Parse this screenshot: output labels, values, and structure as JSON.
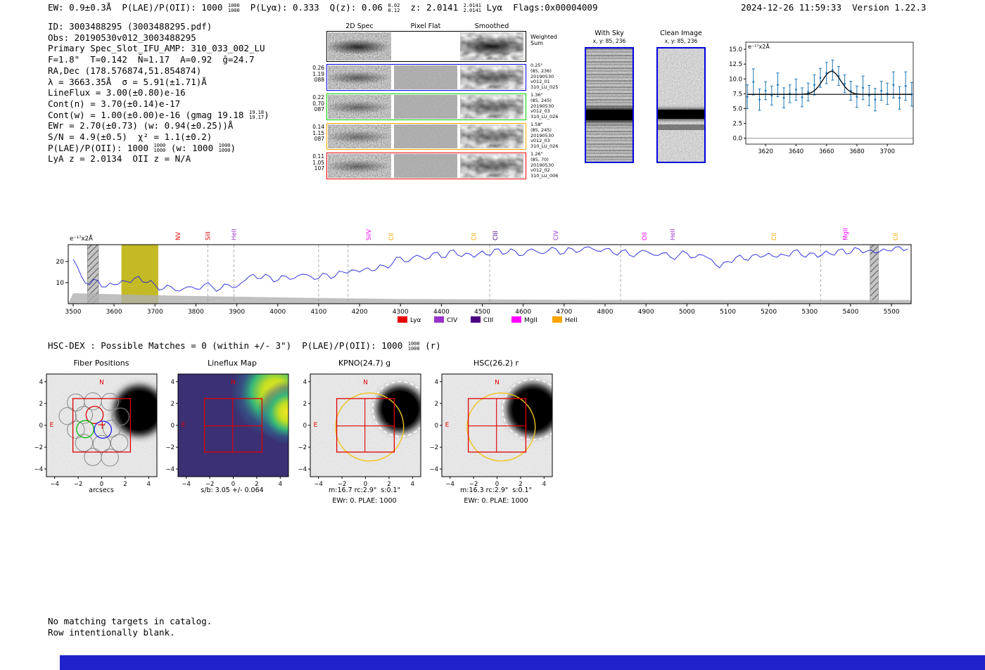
{
  "meta": {
    "timestamp": "2024-12-26 11:59:33",
    "version": "Version 1.22.3"
  },
  "header": {
    "segments": [
      {
        "t": "EW: 0.9±0.3Å  P(LAE)/P(OII): 1000 "
      },
      {
        "frac": [
          "1000",
          "1000"
        ]
      },
      {
        "t": "  P(Lyα): 0.333  Q(z): 0.06 "
      },
      {
        "frac": [
          "0.02",
          "0.12"
        ]
      },
      {
        "t": "  z: 2.0141 "
      },
      {
        "frac": [
          "2.0141",
          "2.0141"
        ]
      },
      {
        "t": " Lyα  Flags:0x00004009"
      }
    ]
  },
  "info_lines": [
    [
      {
        "t": "ID: 3003488295 (3003488295.pdf)"
      }
    ],
    [
      {
        "t": "Obs: 20190530v012_3003488295"
      }
    ],
    [
      {
        "t": "Primary Spec_Slot_IFU_AMP: 310_033_002_LU"
      }
    ],
    [
      {
        "t": "F=1.8\"  T=0.142  N̄=1.17  A=0.92  ḡ=24.7"
      }
    ],
    [
      {
        "t": "RA,Dec (178.576874,51.854874)"
      }
    ],
    [
      {
        "t": "λ = 3663.35Å  σ = 5.91(±1.71)Å"
      }
    ],
    [
      {
        "t": "LineFlux = 3.00(±0.80)e-16"
      }
    ],
    [
      {
        "t": "Cont(n) = 3.70(±0.14)e-17"
      }
    ],
    [
      {
        "t": "Cont(w) = 1.00(±0.00)e-16 (gmag 19.18 "
      },
      {
        "frac": [
          "19.18",
          "19.17"
        ]
      },
      {
        "t": ")"
      }
    ],
    [
      {
        "t": "EWr = 2.70(±0.73) (w: 0.94(±0.25))Å"
      }
    ],
    [
      {
        "t": "S/N = 4.9(±0.5)  χ² = 1.1(±0.2)"
      }
    ],
    [
      {
        "t": "P(LAE)/P(OII): 1000 "
      },
      {
        "frac": [
          "1000",
          "1000"
        ]
      },
      {
        "t": " (w: 1000 "
      },
      {
        "frac": [
          "1000",
          "1000"
        ]
      },
      {
        "t": ")"
      }
    ],
    [
      {
        "t": "LyA z = 2.0134  OII z = N/A"
      }
    ]
  ],
  "spec2d": {
    "col_titles": [
      "2D Spec",
      "Pixel Flat",
      "Smoothed"
    ],
    "weighted_label": [
      "Weighted",
      "Sum"
    ],
    "rows": [
      {
        "color": "#0000dd",
        "left": [
          "0.26",
          "1.19",
          "088"
        ],
        "right": [
          "0.25\"",
          "(85, 236)",
          "20190530",
          "v012_01",
          "310_LU_025"
        ]
      },
      {
        "color": "#00cc00",
        "left": [
          "0.22",
          "0.70",
          "087"
        ],
        "right": [
          "1.36\"",
          "(85, 245)",
          "20190530",
          "v012_03",
          "310_LU_026"
        ]
      },
      {
        "color": "#ffa500",
        "left": [
          "0.14",
          "1.15",
          "087"
        ],
        "right": [
          "1.58\"",
          "(85, 245)",
          "20190530",
          "v012_03",
          "310_LU_026"
        ]
      },
      {
        "color": "#ee0000",
        "left": [
          "0.11",
          "1.05",
          "107"
        ],
        "right": [
          "1.26\"",
          "(85, 70)",
          "20190530",
          "v012_02",
          "310_LU_006"
        ]
      }
    ]
  },
  "withsky": {
    "title": "With Sky",
    "coords": "x, y: 85, 236"
  },
  "clean": {
    "title": "Clean Image",
    "coords": "x, y: 85, 236"
  },
  "hsc_line": [
    {
      "t": "HSC-DEX : Possible Matches = 0 (within +/- 3\")  P(LAE)/P(OII): 1000 "
    },
    {
      "frac": [
        "1000",
        "1000"
      ]
    },
    {
      "t": " (r)"
    }
  ],
  "cutouts": {
    "ticks": [
      -4,
      -2,
      0,
      2,
      4
    ],
    "compass": {
      "n": "N",
      "e": "E"
    },
    "panels": [
      {
        "title": "Fiber Positions",
        "xlabel": "arcsecs",
        "type": "fiber"
      },
      {
        "title": "Lineflux Map",
        "xlabel": "s/b: 3.05 +/- 0.064",
        "type": "lineflux"
      },
      {
        "title": "KPNO(24.7) g",
        "xlabel": "m:16.7 rc:2.9\"  s:0.1\"",
        "caption": "EWr: 0. PLAE: 1000",
        "type": "image"
      },
      {
        "title": "HSC(26.2) r",
        "xlabel": "m:16.3 rc:2.9\"  s:0.1\"",
        "caption": "EWr: 0. PLAE: 1000",
        "type": "image"
      }
    ]
  },
  "footer": {
    "lines": [
      "No matching targets in catalog.",
      "Row intentionally blank."
    ]
  },
  "colors": {
    "spectrum_line": "#2222dd",
    "band_yellow": "#b8ae00",
    "box_blue": "#0000dd",
    "bottom_bar": "#2222cc",
    "crosshair_red": "#e00000",
    "aperture_yellow": "#f0c420",
    "point_blue": "#1f77b4"
  },
  "chart_data": [
    {
      "id": "spectrum",
      "type": "line",
      "ylabel": "e⁻¹⁷x2Å",
      "xlim": [
        3488,
        5548
      ],
      "ylim": [
        0,
        28
      ],
      "xticks": [
        3500,
        3600,
        3700,
        3800,
        3900,
        4000,
        4100,
        4200,
        4300,
        4400,
        4500,
        4600,
        4700,
        4800,
        4900,
        5000,
        5100,
        5200,
        5300,
        5400,
        5500
      ],
      "yticks": [
        10,
        20
      ],
      "x_start": 3500,
      "x_step": 20,
      "values": [
        21,
        13,
        9,
        11,
        8,
        9,
        11,
        10,
        13,
        10,
        9,
        7,
        8,
        6,
        8,
        7,
        9,
        8,
        7,
        9,
        8,
        11,
        14,
        12,
        13,
        11,
        13,
        12,
        14,
        13,
        12,
        14,
        13,
        15,
        16,
        15,
        17,
        16,
        18,
        19,
        22,
        20,
        23,
        21,
        24,
        22,
        25,
        23,
        24,
        22,
        25,
        23,
        26,
        24,
        25,
        23,
        26,
        24,
        25,
        26,
        24,
        26,
        25,
        27,
        25,
        26,
        24,
        25,
        23,
        24,
        25,
        23,
        24,
        22,
        23,
        24,
        22,
        23,
        21,
        17,
        20,
        22,
        21,
        23,
        22,
        24,
        22,
        23,
        25,
        23,
        24,
        22,
        25,
        23,
        26,
        24,
        26,
        25,
        24,
        26,
        25,
        27,
        26
      ],
      "detection_band": [
        3618,
        3708
      ],
      "masked_bands": [
        [
          3535,
          3562
        ],
        [
          5448,
          5468
        ]
      ],
      "dashed_lines": [
        3829,
        3893,
        4100,
        4172,
        4518,
        4838,
        5327
      ],
      "error_envelope": [
        [
          3500,
          5
        ],
        [
          3700,
          4
        ],
        [
          4000,
          3
        ],
        [
          4300,
          2.2
        ],
        [
          4800,
          1.8
        ],
        [
          5548,
          1.8
        ]
      ],
      "spectral_lines": [
        {
          "label": "NV",
          "wave": 3756,
          "color": "#e60000"
        },
        {
          "label": "SiII",
          "wave": 3829,
          "color": "#e60000"
        },
        {
          "label": "HeII",
          "wave": 3893,
          "color": "#9932cc"
        },
        {
          "label": "SiIV",
          "wave": 4222,
          "color": "#ff00ff"
        },
        {
          "label": "CII",
          "wave": 4277,
          "color": "#ffa500"
        },
        {
          "label": "CII",
          "wave": 4479,
          "color": "#ffa500"
        },
        {
          "label": "CIII",
          "wave": 4532,
          "color": "#4b0082"
        },
        {
          "label": "CIV",
          "wave": 4680,
          "color": "#9932cc"
        },
        {
          "label": "OII",
          "wave": 4896,
          "color": "#ff00ff"
        },
        {
          "label": "HeII",
          "wave": 4965,
          "color": "#9932cc"
        },
        {
          "label": "CII",
          "wave": 5213,
          "color": "#ffa500"
        },
        {
          "label": "MgII",
          "wave": 5387,
          "color": "#ff00ff"
        },
        {
          "label": "CII",
          "wave": 5510,
          "color": "#ffa500"
        }
      ],
      "legend": [
        {
          "label": "Lyα",
          "color": "#e60000"
        },
        {
          "label": "CIV",
          "color": "#9932cc"
        },
        {
          "label": "CIII",
          "color": "#4b0082"
        },
        {
          "label": "MgII",
          "color": "#ff00ff"
        },
        {
          "label": "HeII",
          "color": "#ffa500"
        }
      ]
    },
    {
      "id": "line_fit",
      "type": "scatter",
      "label": "e⁻¹⁷x2Å",
      "xlim": [
        3607,
        3717
      ],
      "ylim": [
        -1,
        16.2
      ],
      "xticks": [
        3620,
        3640,
        3660,
        3680,
        3700
      ],
      "yticks": [
        0,
        2.5,
        5,
        7.5,
        10,
        12.5,
        15
      ],
      "x": [
        3608,
        3612,
        3616,
        3620,
        3624,
        3628,
        3632,
        3636,
        3640,
        3644,
        3648,
        3652,
        3656,
        3660,
        3664,
        3668,
        3672,
        3676,
        3680,
        3684,
        3688,
        3692,
        3696,
        3700,
        3704,
        3708,
        3712,
        3716
      ],
      "y": [
        7.0,
        9.5,
        6.5,
        8.0,
        7.2,
        9.0,
        6.8,
        7.5,
        8.2,
        6.9,
        7.8,
        9.0,
        10.2,
        11.0,
        11.5,
        10.5,
        9.2,
        8.0,
        7.0,
        8.5,
        7.2,
        6.5,
        8.0,
        7.5,
        9.0,
        6.8,
        8.8,
        7.4
      ],
      "yerr": [
        2.0,
        2.2,
        1.8,
        1.5,
        1.6,
        2.0,
        1.7,
        1.5,
        1.8,
        1.6,
        1.5,
        1.7,
        1.6,
        1.8,
        1.7,
        1.6,
        1.5,
        1.6,
        1.8,
        2.0,
        1.7,
        1.9,
        1.6,
        1.8,
        2.2,
        1.9,
        2.4,
        2.0
      ],
      "fit": {
        "continuum": 7.4,
        "center": 3663.35,
        "sigma": 5.91,
        "amplitude": 3.9
      }
    }
  ]
}
